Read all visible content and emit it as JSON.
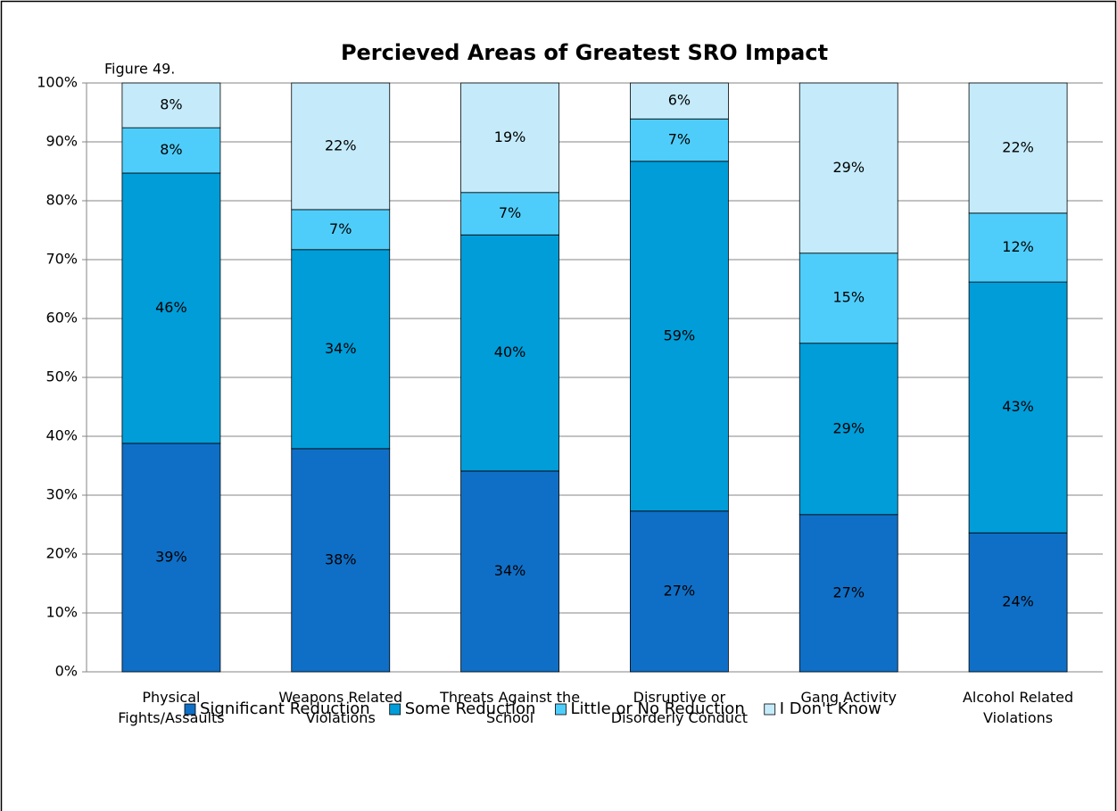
{
  "chart_data": {
    "type": "stacked_bar",
    "title": "Percieved Areas of Greatest SRO Impact",
    "annotation": "Figure 49.",
    "categories": [
      "Physical Fights/Assaults",
      "Weapons Related Violations",
      "Threats Against the School",
      "Disruptive or Disorderly Conduct",
      "Gang Activity",
      "Alcohol Related Violations"
    ],
    "series": [
      {
        "name": "Significant Reduction",
        "color": "#0f6fc6",
        "values": [
          38.8,
          37.9,
          34.1,
          27.3,
          26.7,
          23.6
        ],
        "value_labels": [
          "39%",
          "38%",
          "34%",
          "27%",
          "27%",
          "24%"
        ]
      },
      {
        "name": "Some Reduction",
        "color": "#009dd9",
        "values": [
          45.9,
          33.8,
          40.1,
          59.4,
          29.1,
          42.6
        ],
        "value_labels": [
          "46%",
          "34%",
          "40%",
          "59%",
          "29%",
          "43%"
        ]
      },
      {
        "name": "Little or No Reduction",
        "color": "#4fcdfa",
        "values": [
          7.7,
          6.8,
          7.2,
          7.2,
          15.3,
          11.7
        ],
        "value_labels": [
          "8%",
          "7%",
          "7%",
          "7%",
          "15%",
          "12%"
        ]
      },
      {
        "name": "I Don't Know",
        "color": "#c5ebfb",
        "values": [
          7.6,
          21.5,
          18.6,
          6.1,
          28.9,
          22.1
        ],
        "value_labels": [
          "8%",
          "22%",
          "19%",
          "6%",
          "29%",
          "22%"
        ]
      }
    ],
    "ylim": [
      0,
      100
    ],
    "yticks": [
      {
        "value": 0,
        "label": "0%"
      },
      {
        "value": 10,
        "label": "10%"
      },
      {
        "value": 20,
        "label": "20%"
      },
      {
        "value": 30,
        "label": "30%"
      },
      {
        "value": 40,
        "label": "40%"
      },
      {
        "value": 50,
        "label": "50%"
      },
      {
        "value": 60,
        "label": "60%"
      },
      {
        "value": 70,
        "label": "70%"
      },
      {
        "value": 80,
        "label": "80%"
      },
      {
        "value": 90,
        "label": "90%"
      },
      {
        "value": 100,
        "label": "100%"
      }
    ],
    "grid": true,
    "legend": "bottom"
  }
}
